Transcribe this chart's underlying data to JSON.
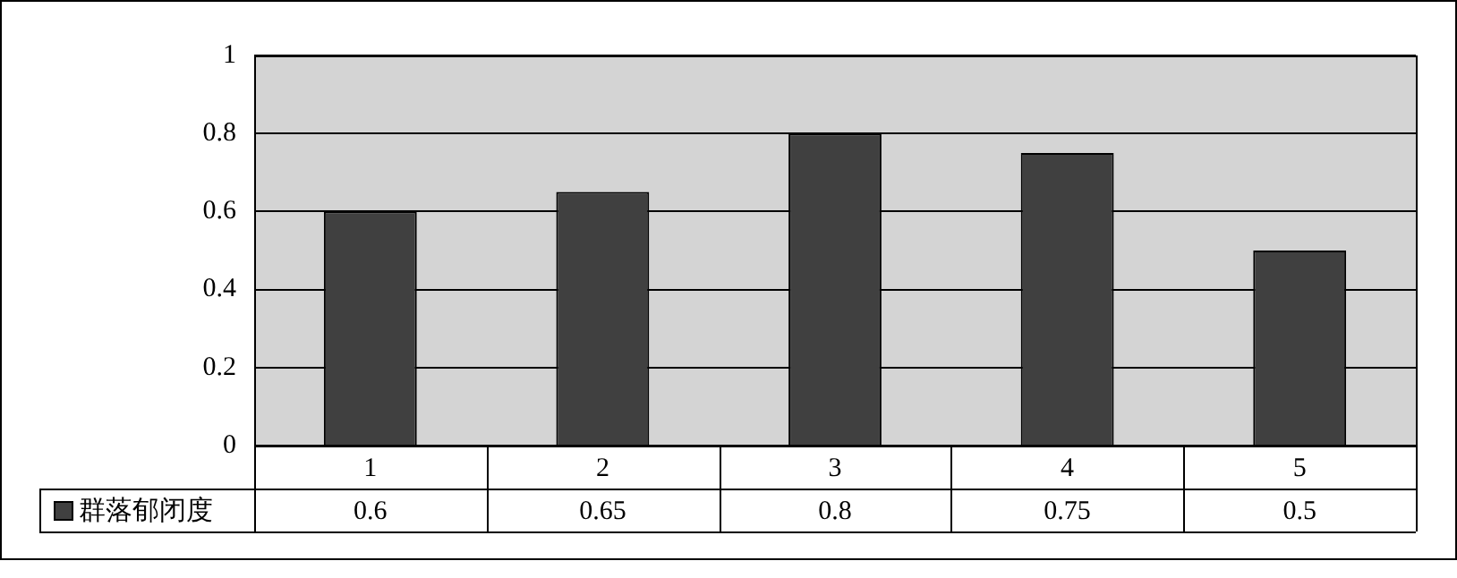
{
  "chart_data": {
    "type": "bar",
    "categories": [
      "1",
      "2",
      "3",
      "4",
      "5"
    ],
    "series": [
      {
        "name": "群落郁闭度",
        "color": "#404040",
        "values": [
          0.6,
          0.65,
          0.8,
          0.75,
          0.5
        ]
      }
    ],
    "ylim": [
      0,
      1
    ],
    "yticks": [
      0,
      0.2,
      0.4,
      0.6,
      0.8,
      1
    ],
    "grid": "y",
    "legend": "bottom",
    "data_labels": true
  }
}
